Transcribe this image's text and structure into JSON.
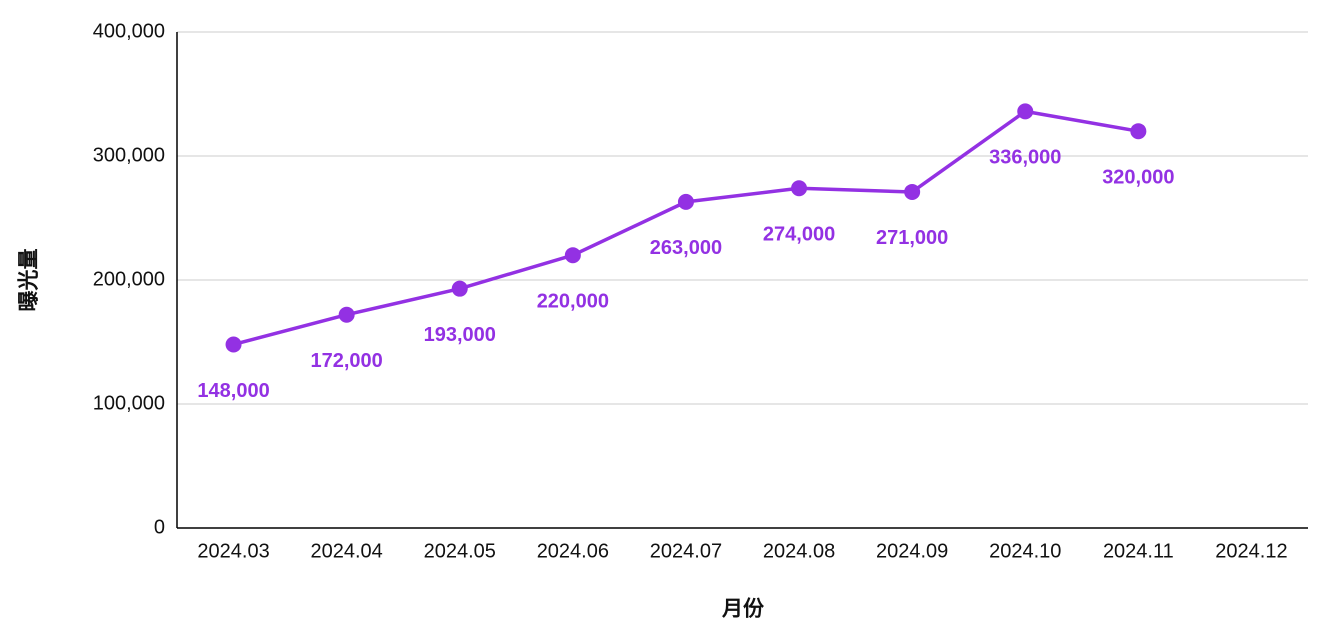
{
  "chart_data": {
    "type": "line",
    "x_label": "月份",
    "y_label": "曝光量",
    "categories": [
      "2024.03",
      "2024.04",
      "2024.05",
      "2024.06",
      "2024.07",
      "2024.08",
      "2024.09",
      "2024.10",
      "2024.11",
      "2024.12"
    ],
    "values": [
      148000,
      172000,
      193000,
      220000,
      263000,
      274000,
      271000,
      336000,
      320000,
      null
    ],
    "value_labels": [
      "148,000",
      "172,000",
      "193,000",
      "220,000",
      "263,000",
      "274,000",
      "271,000",
      "336,000",
      "320,000",
      null
    ],
    "color": "#9331e3",
    "ylim": [
      0,
      400000
    ],
    "yticks": [
      0,
      {
        "value": 100000,
        "label": "100,000"
      },
      {
        "value": 200000,
        "label": "200,000"
      },
      {
        "value": 300000,
        "label": "300,000"
      },
      {
        "value": 400000,
        "label": "400,000"
      }
    ],
    "grid": true
  }
}
